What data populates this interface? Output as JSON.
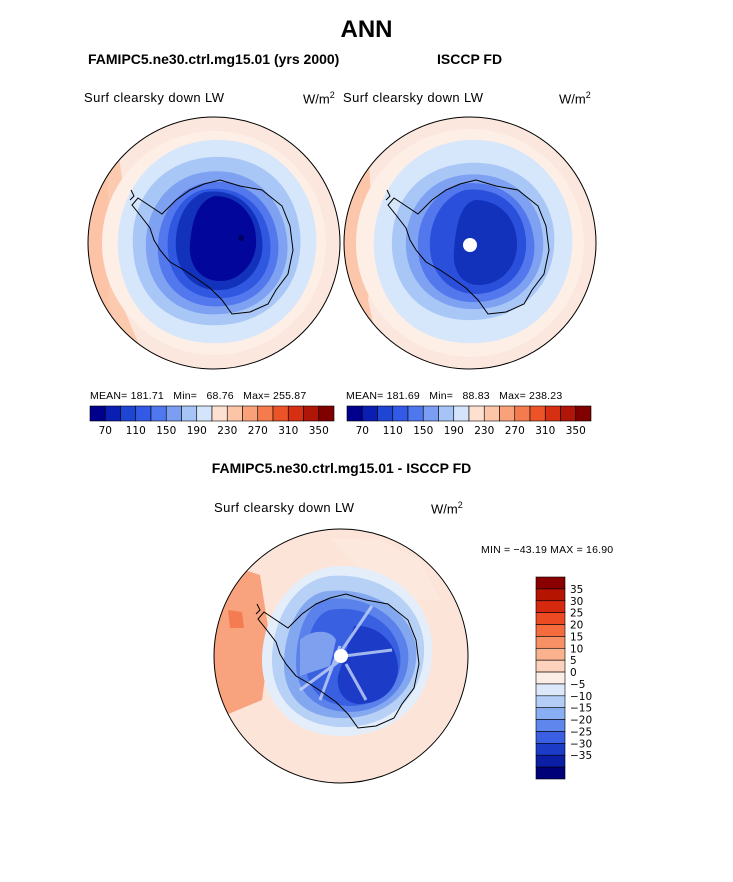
{
  "title": "ANN",
  "panel1": {
    "case": "FAMIPC5.ne30.ctrl.mg15.01 (yrs 2000)",
    "variable": "Surf clearsky down LW",
    "units_base": "W/m",
    "units_exp": "2",
    "mean_label": "MEAN=",
    "mean": "181.71",
    "min_label": "Min=",
    "min": "68.76",
    "max_label": "Max=",
    "max": "255.87"
  },
  "panel2": {
    "case": "ISCCP FD",
    "variable": "Surf clearsky down LW",
    "units_base": "W/m",
    "units_exp": "2",
    "mean_label": "MEAN=",
    "mean": "181.69",
    "min_label": "Min=",
    "min": "88.83",
    "max_label": "Max=",
    "max": "238.23"
  },
  "diff": {
    "title": "FAMIPC5.ne30.ctrl.mg15.01 - ISCCP FD",
    "variable": "Surf clearsky down LW",
    "units_base": "W/m",
    "units_exp": "2",
    "minmax": "MIN = −43.19 MAX =   16.90"
  },
  "chart_data": [
    {
      "type": "heatmap",
      "projection": "south-polar-stereographic",
      "title": "FAMIPC5.ne30.ctrl.mg15.01 (yrs 2000)",
      "variable": "Surf clearsky down LW",
      "units": "W/m2",
      "mean": 181.71,
      "min": 68.76,
      "max": 255.87,
      "colorbar_ticks": [
        70,
        110,
        150,
        190,
        230,
        270,
        310,
        350
      ],
      "colorbar_tick_labels": [
        "70",
        "110",
        "150",
        "190",
        "230",
        "270",
        "310",
        "350"
      ],
      "contour_levels": [
        70,
        90,
        110,
        130,
        150,
        170,
        190,
        210,
        230,
        250,
        270,
        290,
        310,
        330,
        350
      ],
      "colors": [
        "#00008c",
        "#0a1eb4",
        "#1e46d2",
        "#325ae6",
        "#5078ee",
        "#7c9ef2",
        "#a7c4f6",
        "#d4e4fa",
        "#fde0d0",
        "#fcc5a8",
        "#f9a27a",
        "#f47b4e",
        "#ec5428",
        "#d72f14",
        "#b01608",
        "#800000"
      ]
    },
    {
      "type": "heatmap",
      "projection": "south-polar-stereographic",
      "title": "ISCCP FD",
      "variable": "Surf clearsky down LW",
      "units": "W/m2",
      "mean": 181.69,
      "min": 88.83,
      "max": 238.23,
      "colorbar_ticks": [
        70,
        110,
        150,
        190,
        230,
        270,
        310,
        350
      ],
      "colorbar_tick_labels": [
        "70",
        "110",
        "150",
        "190",
        "230",
        "270",
        "310",
        "350"
      ],
      "contour_levels": [
        70,
        90,
        110,
        130,
        150,
        170,
        190,
        210,
        230,
        250,
        270,
        290,
        310,
        330,
        350
      ],
      "colors": [
        "#00008c",
        "#0a1eb4",
        "#1e46d2",
        "#325ae6",
        "#5078ee",
        "#7c9ef2",
        "#a7c4f6",
        "#d4e4fa",
        "#fde0d0",
        "#fcc5a8",
        "#f9a27a",
        "#f47b4e",
        "#ec5428",
        "#d72f14",
        "#b01608",
        "#800000"
      ]
    },
    {
      "type": "heatmap",
      "projection": "south-polar-stereographic",
      "title": "FAMIPC5.ne30.ctrl.mg15.01 - ISCCP FD",
      "variable": "Surf clearsky down LW",
      "units": "W/m2",
      "min": -43.19,
      "max": 16.9,
      "colorbar_orientation": "vertical",
      "colorbar_ticks": [
        35,
        30,
        25,
        20,
        15,
        10,
        5,
        0,
        -5,
        -10,
        -15,
        -20,
        -25,
        -30,
        -35
      ],
      "colorbar_tick_labels": [
        "35",
        "30",
        "25",
        "20",
        "15",
        "10",
        "5",
        "0",
        "−5",
        "−10",
        "−15",
        "−20",
        "−25",
        "−30",
        "−35"
      ],
      "colors": [
        "#8a0000",
        "#b41400",
        "#d62a10",
        "#ec4a22",
        "#f46c3e",
        "#f79064",
        "#fab28e",
        "#fcd2bc",
        "#fbeee6",
        "#dce8fa",
        "#b4cdf6",
        "#8aaef2",
        "#5e86ec",
        "#3a5fe2",
        "#1c3cc8",
        "#0a1ea6",
        "#000078"
      ]
    }
  ]
}
